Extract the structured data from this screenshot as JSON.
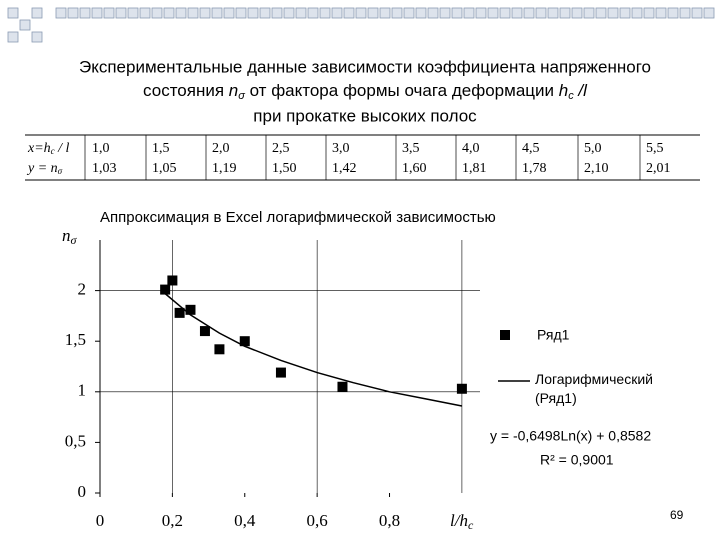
{
  "title": {
    "line1": "Экспериментальные данные зависимости коэффициента напряженного",
    "line2": [
      "состояния ",
      "n",
      "σ",
      " от фактора формы очага деформации ",
      "h",
      "c",
      " /l"
    ],
    "line3": "при прокатке высоких полос"
  },
  "table": {
    "rows": [
      {
        "label": [
          "x=h",
          "c",
          " / l"
        ],
        "cells": [
          "1,0",
          "1,5",
          "2,0",
          "2,5",
          "3,0",
          "3,5",
          "4,0",
          "4,5",
          "5,0",
          "5,5"
        ]
      },
      {
        "label": [
          "y = n",
          "σ"
        ],
        "cells": [
          "1,03",
          "1,05",
          "1,19",
          "1,50",
          "1,42",
          "1,60",
          "1,81",
          "1,78",
          "2,10",
          "2,01"
        ]
      }
    ]
  },
  "chart_data": {
    "type": "scatter",
    "subtitle": "Аппроксимация  в Excel логарифмической зависимостью",
    "x_label": [
      "l/h",
      "c"
    ],
    "y_label": [
      "n",
      "σ"
    ],
    "xlim": [
      0,
      1.05
    ],
    "ylim": [
      0,
      2.5
    ],
    "xticks": [
      0,
      {
        "value": 0.2,
        "label": "0,2"
      },
      {
        "value": 0.4,
        "label": "0,4"
      },
      {
        "value": 0.6,
        "label": "0,6"
      },
      {
        "value": 0.8,
        "label": "0,8"
      }
    ],
    "yticks": [
      0,
      {
        "value": 0.5,
        "label": "0,5"
      },
      1,
      {
        "value": 1.5,
        "label": "1,5"
      },
      2
    ],
    "x_grid_lines": [
      0.2,
      0.6,
      1.0
    ],
    "y_grid_lines": [
      1,
      2
    ],
    "series": [
      {
        "name": "Ряд1",
        "color": "#000000",
        "x": [
          1.0,
          0.67,
          0.5,
          0.4,
          0.33,
          0.29,
          0.25,
          0.22,
          0.2,
          0.18
        ],
        "values": [
          1.03,
          1.05,
          1.19,
          1.5,
          1.42,
          1.6,
          1.81,
          1.78,
          2.1,
          2.01
        ]
      },
      {
        "name": "Логарифмический (Ряд1)",
        "color": "#000000",
        "x": [
          0.18,
          0.25,
          0.33,
          0.4,
          0.5,
          0.6,
          0.7,
          0.8,
          0.9,
          1.0
        ],
        "values": [
          1.97,
          1.76,
          1.58,
          1.45,
          1.31,
          1.19,
          1.09,
          1.0,
          0.93,
          0.86
        ]
      }
    ],
    "equation": "y = -0,6498Ln(x) + 0,8582",
    "r_squared": "R² = 0,9001"
  },
  "page_number": "69"
}
